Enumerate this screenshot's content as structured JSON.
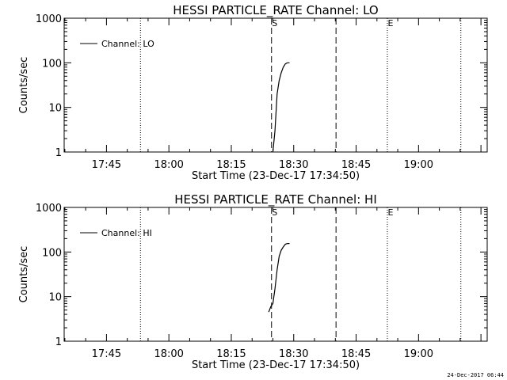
{
  "footer_timestamp": "24-Dec-2017 06:44",
  "chart_data": [
    {
      "type": "line",
      "title": "HESSI PARTICLE_RATE Channel: LO",
      "xlabel": "Start Time (23-Dec-17 17:34:50)",
      "ylabel": "Counts/sec",
      "y_scale": "log",
      "ylim": [
        1,
        1000
      ],
      "xlim": [
        "17:34:50",
        "19:16:30"
      ],
      "xticks": [
        "17:45",
        "18:00",
        "18:15",
        "18:30",
        "18:45",
        "19:00"
      ],
      "yticks": [
        "1",
        "10",
        "100",
        "1000"
      ],
      "legend": {
        "placement": "top-left",
        "entries": [
          "Channel: LO"
        ]
      },
      "markers": [
        {
          "label": "S",
          "time": "18:24:40",
          "style": "dashed"
        },
        {
          "label": "",
          "time": "18:40:10",
          "style": "dashed"
        },
        {
          "label": "E",
          "time": "18:52:30",
          "style": "dotted"
        },
        {
          "label": "",
          "time": "17:53:10",
          "style": "dotted"
        },
        {
          "label": "",
          "time": "19:10:10",
          "style": "dotted"
        }
      ],
      "series": [
        {
          "x": [
            "18:25:00",
            "18:25:30",
            "18:26:00",
            "18:26:30",
            "18:27:00",
            "18:27:30",
            "18:28:00",
            "18:28:30",
            "18:29:00"
          ],
          "y": [
            1,
            3,
            20,
            40,
            60,
            80,
            95,
            100,
            100
          ]
        }
      ]
    },
    {
      "type": "line",
      "title": "HESSI PARTICLE_RATE Channel: HI",
      "xlabel": "Start Time (23-Dec-17 17:34:50)",
      "ylabel": "Counts/sec",
      "y_scale": "log",
      "ylim": [
        1,
        1000
      ],
      "xlim": [
        "17:34:50",
        "19:16:30"
      ],
      "xticks": [
        "17:45",
        "18:00",
        "18:15",
        "18:30",
        "18:45",
        "19:00"
      ],
      "yticks": [
        "1",
        "10",
        "100",
        "1000"
      ],
      "legend": {
        "placement": "top-left",
        "entries": [
          "Channel: HI"
        ]
      },
      "markers": [
        {
          "label": "S",
          "time": "18:24:40",
          "style": "dashed"
        },
        {
          "label": "",
          "time": "18:40:10",
          "style": "dashed"
        },
        {
          "label": "E",
          "time": "18:52:30",
          "style": "dotted"
        },
        {
          "label": "",
          "time": "17:53:10",
          "style": "dotted"
        },
        {
          "label": "",
          "time": "19:10:10",
          "style": "dotted"
        }
      ],
      "series": [
        {
          "x": [
            "18:24:00",
            "18:24:30",
            "18:25:00",
            "18:25:30",
            "18:26:00",
            "18:26:30",
            "18:27:00",
            "18:27:30",
            "18:28:00",
            "18:28:30",
            "18:29:00"
          ],
          "y": [
            4.5,
            6,
            7,
            15,
            40,
            80,
            110,
            130,
            150,
            155,
            155
          ]
        }
      ]
    }
  ]
}
